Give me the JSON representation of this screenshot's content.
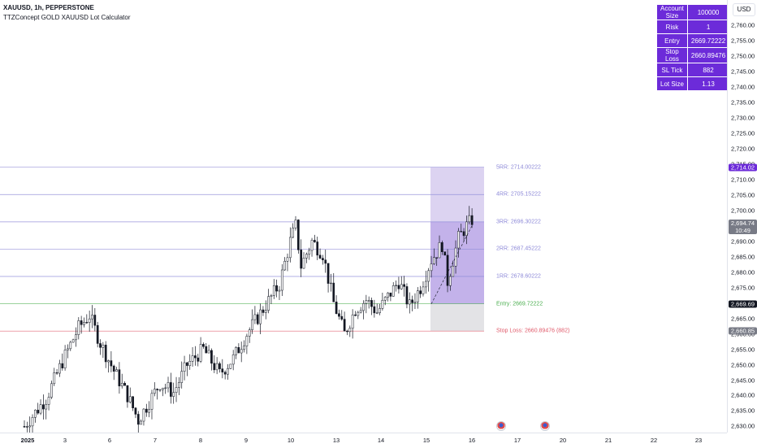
{
  "legend": {
    "symbol_line": "XAUUSD, 1h, PEPPERSTONE",
    "indicator_line": "TTZConcept GOLD XAUUSD Lot Calculator"
  },
  "currency_button": "USD",
  "calculator": [
    {
      "key": "Account Size",
      "value": "100000"
    },
    {
      "key": "Risk",
      "value": "1"
    },
    {
      "key": "Entry",
      "value": "2669.72222"
    },
    {
      "key": "Stop Loss",
      "value": "2660.89476"
    },
    {
      "key": "SL Tick",
      "value": "882"
    },
    {
      "key": "Lot Size",
      "value": "1.13"
    }
  ],
  "price_axis": {
    "ticks": [
      "2,630.00",
      "2,635.00",
      "2,640.00",
      "2,645.00",
      "2,650.00",
      "2,655.00",
      "2,660.00",
      "2,665.00",
      "2,670.00",
      "2,675.00",
      "2,680.00",
      "2,685.00",
      "2,690.00",
      "2,695.00",
      "2,700.00",
      "2,705.00",
      "2,710.00",
      "2,715.00",
      "2,720.00",
      "2,725.00",
      "2,730.00",
      "2,735.00",
      "2,740.00",
      "2,745.00",
      "2,750.00",
      "2,755.00",
      "2,760.00"
    ],
    "tags": [
      {
        "text": "2,714.02",
        "price": 2714.02,
        "color": "#6c2bd9"
      },
      {
        "text": "2,694.74",
        "subtext": "10:49",
        "price": 2694.74,
        "color": "#787b86"
      },
      {
        "text": "2,669.69",
        "price": 2669.69,
        "color": "#131722"
      },
      {
        "text": "2,660.85",
        "price": 2660.85,
        "color": "#787b86"
      }
    ]
  },
  "time_axis": [
    {
      "label": "2025",
      "bold": true
    },
    {
      "label": "3"
    },
    {
      "label": "6"
    },
    {
      "label": "7"
    },
    {
      "label": "8"
    },
    {
      "label": "9"
    },
    {
      "label": "10"
    },
    {
      "label": "13"
    },
    {
      "label": "14"
    },
    {
      "label": "15"
    },
    {
      "label": "16"
    },
    {
      "label": "17"
    },
    {
      "label": "20"
    },
    {
      "label": "21"
    },
    {
      "label": "22"
    },
    {
      "label": "23"
    }
  ],
  "levels": [
    {
      "label": "5RR: 2714.00222",
      "price": 2714.0,
      "color": "#8e8ad8"
    },
    {
      "label": "4RR: 2705.15222",
      "price": 2705.15,
      "color": "#8e8ad8"
    },
    {
      "label": "3RR: 2696.30222",
      "price": 2696.3,
      "color": "#8e8ad8"
    },
    {
      "label": "2RR: 2687.45222",
      "price": 2687.45,
      "color": "#8e8ad8"
    },
    {
      "label": "1RR: 2678.60222",
      "price": 2678.6,
      "color": "#8e8ad8"
    },
    {
      "label": "Entry: 2669.72222",
      "price": 2669.72,
      "color": "#4caf50"
    },
    {
      "label": "Stop Loss: 2660.89476 (882)",
      "price": 2660.89,
      "color": "#e05a6a"
    }
  ],
  "chart_data": {
    "type": "candlestick",
    "symbol": "XAUUSD",
    "timeframe": "1h",
    "ylim": [
      2628,
      2764
    ],
    "x_categories": [
      "2025",
      "3",
      "6",
      "7",
      "8",
      "9",
      "10",
      "13",
      "14",
      "15",
      "16",
      "17",
      "20",
      "21",
      "22",
      "23"
    ],
    "path": [
      [
        0,
        2630
      ],
      [
        8,
        2639
      ],
      [
        14,
        2651
      ],
      [
        20,
        2662
      ],
      [
        24,
        2666
      ],
      [
        28,
        2657
      ],
      [
        33,
        2648
      ],
      [
        38,
        2640
      ],
      [
        42,
        2632
      ],
      [
        46,
        2638
      ],
      [
        50,
        2644
      ],
      [
        55,
        2641
      ],
      [
        60,
        2650
      ],
      [
        66,
        2655
      ],
      [
        72,
        2647
      ],
      [
        77,
        2652
      ],
      [
        82,
        2660
      ],
      [
        88,
        2668
      ],
      [
        94,
        2676
      ],
      [
        98,
        2690
      ],
      [
        100,
        2695
      ],
      [
        102,
        2682
      ],
      [
        106,
        2690
      ],
      [
        110,
        2686
      ],
      [
        114,
        2670
      ],
      [
        118,
        2660
      ],
      [
        122,
        2668
      ],
      [
        126,
        2671
      ],
      [
        130,
        2667
      ],
      [
        134,
        2672
      ],
      [
        138,
        2677
      ],
      [
        142,
        2669
      ],
      [
        146,
        2675
      ],
      [
        150,
        2684
      ],
      [
        154,
        2689
      ],
      [
        156,
        2677
      ],
      [
        160,
        2691
      ],
      [
        163,
        2695
      ],
      [
        165,
        2697
      ]
    ],
    "risk_box": {
      "entry": 2669.72,
      "stop": 2660.89,
      "target": 2714.0
    }
  }
}
